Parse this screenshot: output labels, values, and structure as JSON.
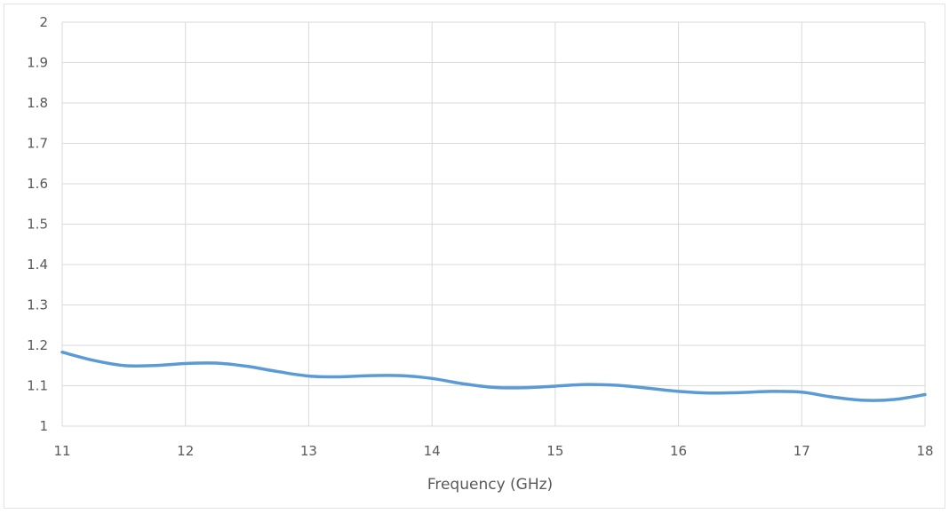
{
  "chart_data": {
    "type": "line",
    "title": "",
    "xlabel": "Frequency (GHz)",
    "ylabel": "",
    "xlim": [
      11,
      18
    ],
    "ylim": [
      1,
      2
    ],
    "xticks": [
      "11",
      "12",
      "13",
      "14",
      "15",
      "16",
      "17",
      "18"
    ],
    "yticks": [
      "1",
      "1.1",
      "1.2",
      "1.3",
      "1.4",
      "1.5",
      "1.6",
      "1.7",
      "1.8",
      "1.9",
      "2"
    ],
    "grid": true,
    "legend": "none",
    "series": [
      {
        "color": "#5b9bd5",
        "x": [
          11,
          11.25,
          11.5,
          11.75,
          12,
          12.25,
          12.5,
          12.75,
          13,
          13.25,
          13.5,
          13.75,
          14,
          14.25,
          14.5,
          14.75,
          15,
          15.25,
          15.5,
          15.75,
          16,
          16.25,
          16.5,
          16.75,
          17,
          17.25,
          17.5,
          17.75,
          18
        ],
        "y": [
          1.183,
          1.163,
          1.15,
          1.15,
          1.155,
          1.156,
          1.148,
          1.135,
          1.124,
          1.122,
          1.125,
          1.125,
          1.118,
          1.105,
          1.096,
          1.095,
          1.099,
          1.103,
          1.101,
          1.094,
          1.086,
          1.082,
          1.083,
          1.086,
          1.084,
          1.072,
          1.064,
          1.066,
          1.078
        ]
      }
    ]
  }
}
